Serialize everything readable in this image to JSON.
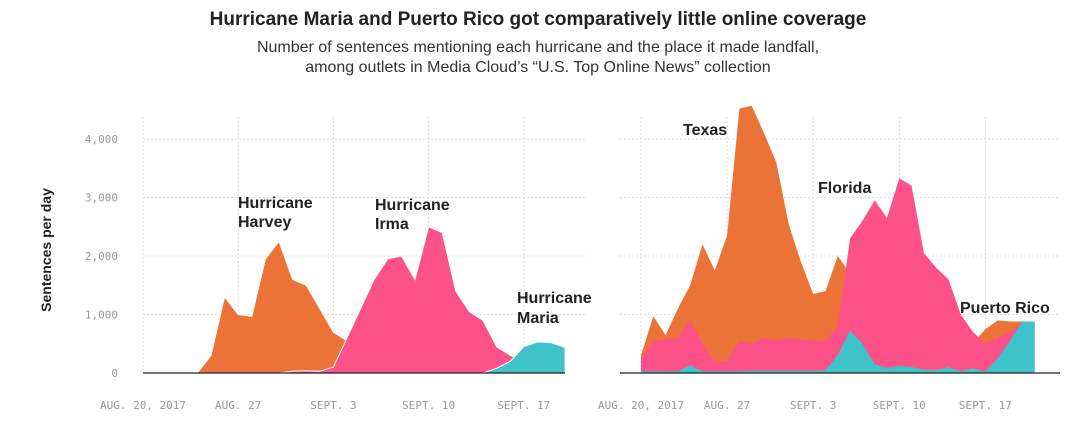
{
  "title": "Hurricane Maria and Puerto Rico got comparatively little online coverage",
  "subtitle_lines": [
    "Number of sentences mentioning each hurricane and the place it made landfall,",
    "among outlets in Media Cloud’s “U.S. Top Online News” collection"
  ],
  "colors": {
    "harvey_texas": "#EC7338",
    "irma_florida": "#FD5189",
    "maria_puerto_rico": "#3FC3CB",
    "grid": "#dddddd",
    "axis": "#222222"
  },
  "chart_data": [
    {
      "type": "area",
      "panel": "hurricanes",
      "ylabel": "Sentences per day",
      "ylim": [
        0,
        4500
      ],
      "yticks": [
        0,
        1000,
        2000,
        3000,
        4000
      ],
      "ytick_labels": [
        "0",
        "1,000",
        "2,000",
        "3,000",
        "4,000"
      ],
      "xticks": [
        {
          "day": 0,
          "label": "AUG. 20, 2017"
        },
        {
          "day": 7,
          "label": "AUG. 27"
        },
        {
          "day": 14,
          "label": "SEPT. 3"
        },
        {
          "day": 21,
          "label": "SEPT. 10"
        },
        {
          "day": 28,
          "label": "SEPT. 17"
        }
      ],
      "x_start": "2017-08-20",
      "x_end": "2017-09-22",
      "grid": true,
      "series": [
        {
          "name": "Hurricane Harvey",
          "color": "#EC7338",
          "start_day": 4,
          "values": [
            0,
            300,
            1300,
            1000,
            970,
            1950,
            2250,
            1600,
            1500,
            1100,
            700,
            550,
            500,
            300,
            150,
            60,
            40,
            30,
            25,
            20,
            15,
            10,
            10,
            5,
            5,
            0,
            0,
            0,
            0
          ]
        },
        {
          "name": "Hurricane Irma",
          "color": "#FD5189",
          "start_day": 10,
          "values": [
            0,
            30,
            40,
            30,
            100,
            600,
            1100,
            1600,
            1950,
            2000,
            1600,
            2500,
            2400,
            1400,
            1050,
            900,
            450,
            300,
            220,
            150,
            80
          ]
        },
        {
          "name": "Hurricane Maria",
          "color": "#3FC3CB",
          "start_day": 25,
          "values": [
            0,
            80,
            200,
            450,
            530,
            520,
            440
          ]
        }
      ]
    },
    {
      "type": "area",
      "panel": "places",
      "ylim": [
        0,
        4500
      ],
      "yticks": [
        0,
        1000,
        2000,
        3000,
        4000
      ],
      "xticks": [
        {
          "day": 0,
          "label": "AUG. 20, 2017"
        },
        {
          "day": 7,
          "label": "AUG. 27"
        },
        {
          "day": 14,
          "label": "SEPT. 3"
        },
        {
          "day": 21,
          "label": "SEPT. 10"
        },
        {
          "day": 28,
          "label": "SEPT. 17"
        }
      ],
      "x_start": "2017-08-20",
      "x_end": "2017-09-22",
      "grid": true,
      "series": [
        {
          "name": "Texas",
          "color": "#EC7338",
          "start_day": 0,
          "values": [
            300,
            970,
            650,
            1100,
            1500,
            2200,
            1750,
            2350,
            4520,
            4570,
            4100,
            3600,
            2550,
            1900,
            1350,
            1400,
            2000,
            1700,
            1700,
            1700,
            1700,
            1600,
            1550,
            1500,
            1300,
            1000,
            780,
            520,
            750,
            900,
            880,
            880,
            880
          ]
        },
        {
          "name": "Florida",
          "color": "#FD5189",
          "start_day": 0,
          "values": [
            250,
            550,
            580,
            600,
            900,
            500,
            200,
            200,
            550,
            500,
            600,
            550,
            600,
            570,
            550,
            550,
            800,
            2300,
            2600,
            2950,
            2650,
            3330,
            3200,
            2050,
            1800,
            1600,
            1000,
            700,
            500,
            600,
            700,
            880,
            880
          ]
        },
        {
          "name": "Puerto Rico",
          "color": "#3FC3CB",
          "start_day": 0,
          "values": [
            30,
            30,
            30,
            30,
            130,
            30,
            30,
            30,
            30,
            40,
            40,
            40,
            40,
            40,
            40,
            50,
            300,
            730,
            500,
            150,
            80,
            120,
            100,
            60,
            50,
            100,
            30,
            80,
            20,
            250,
            550,
            880,
            880
          ]
        }
      ]
    }
  ],
  "annotations": {
    "harvey": [
      "Hurricane",
      "Harvey"
    ],
    "irma": [
      "Hurricane",
      "Irma"
    ],
    "maria": [
      "Hurricane",
      "Maria"
    ],
    "texas": "Texas",
    "florida": "Florida",
    "puerto_rico": "Puerto Rico"
  }
}
